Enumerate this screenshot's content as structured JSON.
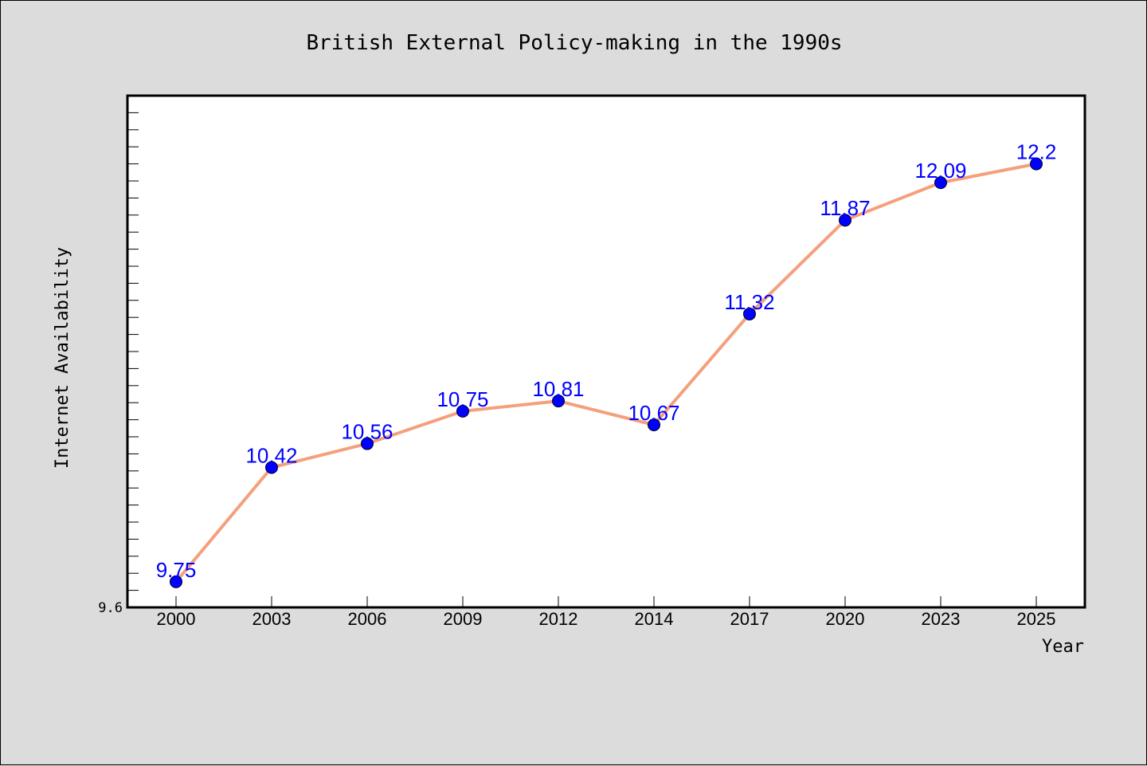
{
  "chart_data": {
    "type": "line",
    "title": "British External Policy-making in the 1990s",
    "xlabel": "Year",
    "ylabel": "Internet Availability",
    "categories": [
      "2000",
      "2003",
      "2006",
      "2009",
      "2012",
      "2014",
      "2017",
      "2020",
      "2023",
      "2025"
    ],
    "series": [
      {
        "values": [
          9.75,
          10.42,
          10.56,
          10.75,
          10.81,
          10.67,
          11.32,
          11.87,
          12.09,
          12.2
        ],
        "labels": [
          "9.75",
          "10.42",
          "10.56",
          "10.75",
          "10.81",
          "10.67",
          "11.32",
          "11.87",
          "12.09",
          "12.2"
        ]
      }
    ],
    "ylim": [
      9.6,
      12.6
    ],
    "y_tick_labels": [
      "9.6"
    ],
    "grid": false,
    "colors": {
      "line": "#f4a07c",
      "marker": "#0000ff",
      "label": "#0000ff",
      "plot_background": "#ffffff",
      "page_background": "#dcdcdc"
    }
  }
}
